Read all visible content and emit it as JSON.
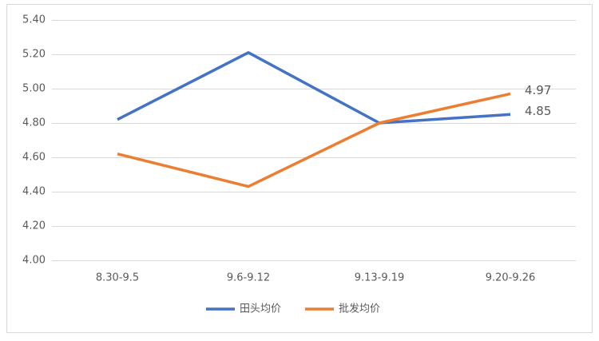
{
  "chart_data": {
    "type": "line",
    "categories": [
      "8.30-9.5",
      "9.6-9.12",
      "9.13-9.19",
      "9.20-9.26"
    ],
    "series": [
      {
        "name": "田头均价",
        "color": "#4472c4",
        "values": [
          4.82,
          5.21,
          4.8,
          4.85
        ]
      },
      {
        "name": "批发均价",
        "color": "#ed7d31",
        "values": [
          4.62,
          4.43,
          4.8,
          4.97
        ]
      }
    ],
    "ylim": [
      4.0,
      5.4
    ],
    "yticks": [
      {
        "value": 4.0,
        "label": "4.00"
      },
      {
        "value": 4.2,
        "label": "4.20"
      },
      {
        "value": 4.4,
        "label": "4.40"
      },
      {
        "value": 4.6,
        "label": "4.60"
      },
      {
        "value": 4.8,
        "label": "4.80"
      },
      {
        "value": 5.0,
        "label": "5.00"
      },
      {
        "value": 5.2,
        "label": "5.20"
      },
      {
        "value": 5.4,
        "label": "5.40"
      }
    ],
    "grid": true,
    "label_last_point": true,
    "legend": "bottom"
  }
}
